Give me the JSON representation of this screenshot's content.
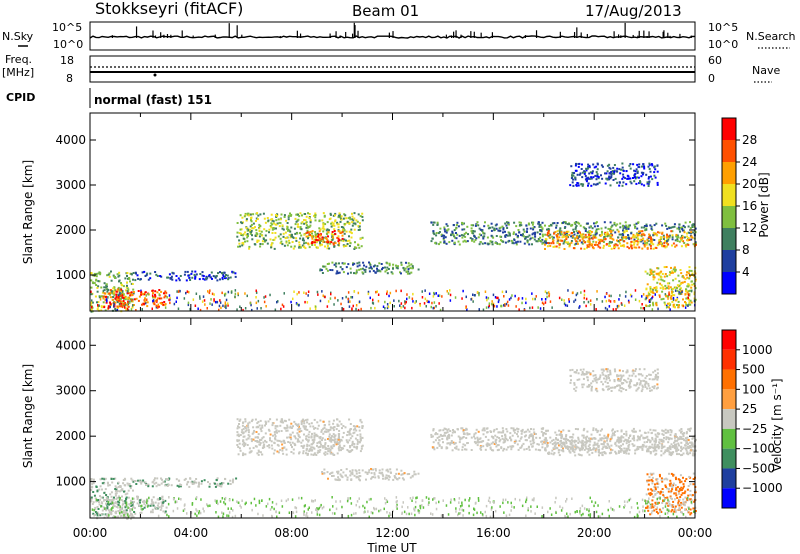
{
  "header": {
    "station": "Stokkseyri (fitACF)",
    "beam": "Beam 01",
    "date": "17/Aug/2013"
  },
  "top_panels": {
    "nsky_label": "N.Sky",
    "nsearch_label": "N.Search",
    "noise_ticks_left": [
      "10^5",
      "10^0"
    ],
    "noise_ticks_right": [
      "10^5",
      "10^0"
    ],
    "freq_label": "Freq.",
    "freq_unit": "[MHz]",
    "freq_ticks": [
      "18",
      "8"
    ],
    "nave_label": "Nave",
    "nave_ticks": [
      "60",
      "0"
    ],
    "cpid_label": "CPID",
    "cpid_value": "normal (fast) 151"
  },
  "chart_data": [
    {
      "type": "heatmap",
      "quantity": "power",
      "ylabel": "Slant Range [km]",
      "ylim": [
        200,
        4600
      ],
      "yticks": [
        "1000",
        "2000",
        "3000",
        "4000"
      ],
      "xlim_hours": [
        0,
        24
      ],
      "colorbar_title": "Power [dB]",
      "colorbar_ticks": [
        "4",
        "8",
        "12",
        "16",
        "20",
        "24",
        "28"
      ],
      "colors": [
        "#0000ff",
        "#1f3f9f",
        "#3f7f5f",
        "#7fbf3f",
        "#f0e020",
        "#ff9f00",
        "#ff5000",
        "#ff0000"
      ],
      "echo_regions_km": [
        {
          "t0": 0.0,
          "t1": 1.7,
          "r0": 200,
          "r1": 1100,
          "level": 0.45
        },
        {
          "t0": 1.7,
          "t1": 5.8,
          "r0": 900,
          "r1": 1100,
          "level": 0.15
        },
        {
          "t0": 0.5,
          "t1": 3.0,
          "r0": 300,
          "r1": 700,
          "level": 0.9
        },
        {
          "t0": 5.8,
          "t1": 10.8,
          "r0": 1600,
          "r1": 2400,
          "level": 0.4
        },
        {
          "t0": 8.5,
          "t1": 10.0,
          "r0": 1700,
          "r1": 2000,
          "level": 0.8
        },
        {
          "t0": 9.0,
          "t1": 13.0,
          "r0": 1050,
          "r1": 1300,
          "level": 0.3
        },
        {
          "t0": 13.5,
          "t1": 24.0,
          "r0": 1700,
          "r1": 2200,
          "level": 0.35
        },
        {
          "t0": 18.0,
          "t1": 24.0,
          "r0": 1600,
          "r1": 2000,
          "level": 0.7
        },
        {
          "t0": 19.0,
          "t1": 22.5,
          "r0": 3000,
          "r1": 3500,
          "level": 0.15
        },
        {
          "t0": 22.0,
          "t1": 24.0,
          "r0": 300,
          "r1": 1200,
          "level": 0.6
        }
      ]
    },
    {
      "type": "heatmap",
      "quantity": "velocity",
      "ylabel": "Slant Range [km]",
      "ylim": [
        200,
        4600
      ],
      "yticks": [
        "1000",
        "2000",
        "3000",
        "4000"
      ],
      "xlim_hours": [
        0,
        24
      ],
      "colorbar_title": "Velocity [m s⁻¹]",
      "colorbar_ticks": [
        "1000",
        "500",
        "100",
        "25",
        "−25",
        "−100",
        "−500",
        "−1000"
      ],
      "colors": [
        "#0000ff",
        "#1f3f9f",
        "#3f8f5f",
        "#60c040",
        "#c8c8c0",
        "#ff9f40",
        "#ff7000",
        "#ff3000",
        "#ff0000"
      ],
      "xticks": [
        "00:00",
        "04:00",
        "08:00",
        "12:00",
        "16:00",
        "20:00",
        "00:00"
      ],
      "xlabel": "Time UT"
    }
  ]
}
